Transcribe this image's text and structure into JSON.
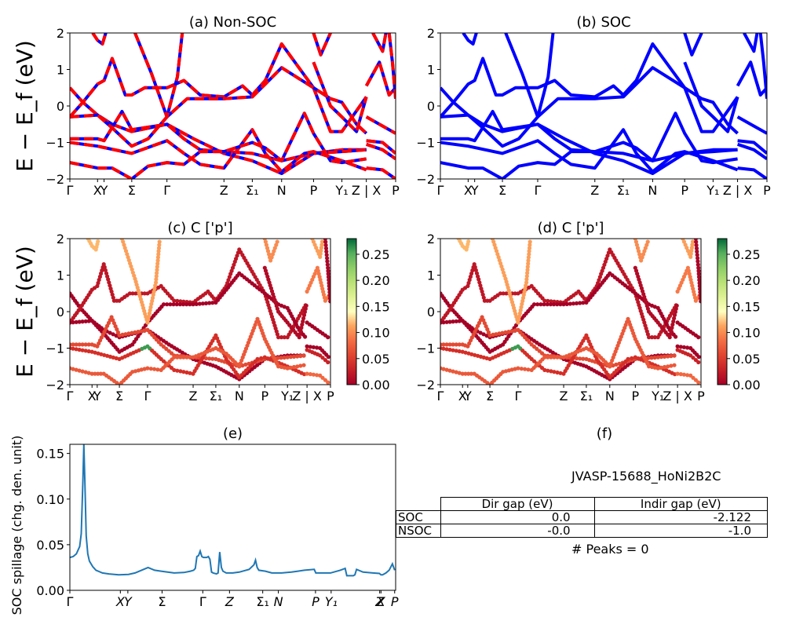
{
  "figure": {
    "ylabel_band": "E − E_f (eV)",
    "colors": {
      "nonsoc_solid": "#ff0000",
      "nonsoc_dash": "#0000ff",
      "soc": "#0000ff",
      "spillage_line": "#1f77b4"
    }
  },
  "chart_data": [
    {
      "id": "a",
      "type": "line",
      "title": "(a) Non-SOC",
      "ylabel": "E − E_f (eV)",
      "ylim": [
        -2,
        2
      ],
      "yticks": [
        "2",
        "1",
        "0",
        "−1",
        "−2"
      ],
      "xticks": [
        "Γ",
        "X",
        "Y",
        "Σ",
        "Γ",
        "Z",
        "Σ₁",
        "N",
        "P",
        "Y₁",
        "Z | X",
        "P"
      ],
      "xtick_pos": [
        0,
        0.085,
        0.105,
        0.19,
        0.298,
        0.473,
        0.56,
        0.65,
        0.748,
        0.835,
        0.91,
        1.0
      ],
      "style": "red solid with blue dashes overlay",
      "bands": [
        [
          [
            0,
            0.5
          ],
          [
            0.04,
            0.1
          ],
          [
            0.085,
            -0.25
          ],
          [
            0.13,
            -0.5
          ],
          [
            0.19,
            -0.7
          ],
          [
            0.298,
            -0.5
          ],
          [
            0.38,
            -0.9
          ],
          [
            0.473,
            -1.3
          ],
          [
            0.56,
            -1.5
          ],
          [
            0.65,
            -1.85
          ],
          [
            0.748,
            -1.3
          ],
          [
            0.835,
            -1.2
          ],
          [
            0.91,
            -1.2
          ]
        ],
        [
          [
            0,
            -0.3
          ],
          [
            0.04,
            0.1
          ],
          [
            0.085,
            0.6
          ],
          [
            0.105,
            0.7
          ],
          [
            0.13,
            1.3
          ],
          [
            0.17,
            0.3
          ],
          [
            0.19,
            0.3
          ],
          [
            0.23,
            0.5
          ],
          [
            0.298,
            0.5
          ],
          [
            0.35,
            0.7
          ],
          [
            0.4,
            0.3
          ],
          [
            0.473,
            0.25
          ],
          [
            0.53,
            0.55
          ],
          [
            0.56,
            0.3
          ],
          [
            0.6,
            0.7
          ],
          [
            0.65,
            1.7
          ],
          [
            0.748,
            0.5
          ],
          [
            0.8,
            -0.7
          ],
          [
            0.835,
            -0.7
          ],
          [
            0.91,
            0.25
          ]
        ],
        [
          [
            0,
            -0.3
          ],
          [
            0.085,
            -0.25
          ],
          [
            0.13,
            -0.6
          ],
          [
            0.19,
            -1.1
          ],
          [
            0.24,
            -0.9
          ],
          [
            0.298,
            -0.3
          ],
          [
            0.36,
            0.2
          ],
          [
            0.473,
            0.2
          ],
          [
            0.56,
            0.25
          ],
          [
            0.6,
            0.6
          ],
          [
            0.65,
            1.05
          ],
          [
            0.748,
            0.5
          ],
          [
            0.8,
            0.2
          ],
          [
            0.835,
            0.1
          ],
          [
            0.88,
            -0.5
          ],
          [
            0.91,
            -0.75
          ]
        ],
        [
          [
            0,
            -0.9
          ],
          [
            0.085,
            -0.9
          ],
          [
            0.105,
            -0.95
          ],
          [
            0.16,
            -0.15
          ],
          [
            0.19,
            -0.65
          ],
          [
            0.298,
            -0.5
          ],
          [
            0.35,
            -0.9
          ],
          [
            0.4,
            -1.2
          ],
          [
            0.473,
            -1.25
          ],
          [
            0.56,
            -1.3
          ],
          [
            0.65,
            -1.5
          ],
          [
            0.748,
            -1.3
          ],
          [
            0.835,
            -1.25
          ],
          [
            0.91,
            -1.2
          ]
        ],
        [
          [
            0,
            -1.0
          ],
          [
            0.085,
            -1.1
          ],
          [
            0.19,
            -1.3
          ],
          [
            0.298,
            -0.95
          ],
          [
            0.35,
            -1.3
          ],
          [
            0.4,
            -1.6
          ],
          [
            0.473,
            -1.7
          ],
          [
            0.56,
            -0.65
          ],
          [
            0.6,
            -1.3
          ],
          [
            0.65,
            -1.8
          ],
          [
            0.72,
            -1.3
          ],
          [
            0.748,
            -1.25
          ],
          [
            0.835,
            -1.5
          ],
          [
            0.91,
            -1.75
          ]
        ],
        [
          [
            0,
            -1.55
          ],
          [
            0.085,
            -1.7
          ],
          [
            0.13,
            -1.7
          ],
          [
            0.19,
            -2.0
          ],
          [
            0.24,
            -1.65
          ],
          [
            0.298,
            -1.55
          ],
          [
            0.35,
            -1.6
          ],
          [
            0.4,
            -1.25
          ],
          [
            0.473,
            -1.25
          ],
          [
            0.56,
            -1.0
          ],
          [
            0.6,
            -1.15
          ],
          [
            0.65,
            -1.5
          ],
          [
            0.72,
            -0.2
          ],
          [
            0.748,
            -0.75
          ],
          [
            0.8,
            -1.5
          ],
          [
            0.835,
            -1.55
          ],
          [
            0.91,
            -1.45
          ]
        ],
        [
          [
            0.07,
            2.0
          ],
          [
            0.085,
            1.8
          ],
          [
            0.1,
            1.7
          ],
          [
            0.11,
            2.0
          ]
        ],
        [
          [
            0.2,
            2.0
          ],
          [
            0.25,
            0.9
          ],
          [
            0.298,
            -0.3
          ],
          [
            0.33,
            0.8
          ],
          [
            0.345,
            2.0
          ]
        ],
        [
          [
            0.748,
            2.0
          ],
          [
            0.77,
            1.4
          ],
          [
            0.8,
            2.0
          ]
        ],
        [
          [
            0.748,
            1.2
          ],
          [
            0.8,
            0.0
          ],
          [
            0.835,
            -0.3
          ],
          [
            0.88,
            -0.7
          ],
          [
            0.91,
            0.25
          ]
        ],
        [
          [
            0.91,
            -0.3
          ],
          [
            0.95,
            -0.5
          ],
          [
            1.0,
            -0.75
          ]
        ],
        [
          [
            0.91,
            0.55
          ],
          [
            0.95,
            1.2
          ],
          [
            0.98,
            0.3
          ],
          [
            1.0,
            0.5
          ]
        ],
        [
          [
            0.91,
            -0.95
          ],
          [
            0.96,
            -1.0
          ],
          [
            1.0,
            -1.3
          ]
        ],
        [
          [
            0.91,
            -1.05
          ],
          [
            0.96,
            -1.2
          ],
          [
            1.0,
            -1.45
          ]
        ],
        [
          [
            0.91,
            -1.7
          ],
          [
            0.96,
            -1.75
          ],
          [
            1.0,
            -2.0
          ]
        ],
        [
          [
            0.93,
            2.0
          ],
          [
            0.96,
            1.5
          ],
          [
            0.97,
            2.0
          ]
        ],
        [
          [
            0.98,
            2.0
          ],
          [
            0.99,
            1.2
          ],
          [
            1.0,
            0.2
          ]
        ]
      ]
    },
    {
      "id": "b",
      "type": "line",
      "title": "(b) SOC",
      "ylim": [
        -2,
        2
      ],
      "yticks": [
        "2",
        "1",
        "0",
        "−1",
        "−2"
      ],
      "xticks": [
        "Γ",
        "X",
        "Y",
        "Σ",
        "Γ",
        "Z",
        "Σ₁",
        "N",
        "P",
        "Y₁",
        "Z | X",
        "P"
      ],
      "xtick_pos": [
        0,
        0.085,
        0.105,
        0.19,
        0.298,
        0.473,
        0.56,
        0.65,
        0.748,
        0.835,
        0.91,
        1.0
      ],
      "style": "blue solid"
    },
    {
      "id": "c",
      "type": "scatter",
      "title": "(c)  C ['p']",
      "ylabel": "E − E_f (eV)",
      "ylim": [
        -2,
        2
      ],
      "yticks": [
        "2",
        "1",
        "0",
        "−1",
        "−2"
      ],
      "xticks": [
        "Γ",
        "X",
        "Y",
        "Σ",
        "Γ",
        "Z",
        "Σ₁",
        "N",
        "P",
        "Y₁",
        "Z | X",
        "P"
      ],
      "xtick_pos": [
        0,
        0.085,
        0.105,
        0.19,
        0.298,
        0.473,
        0.56,
        0.65,
        0.748,
        0.835,
        0.91,
        1.0
      ],
      "colormap": "RdYlGn",
      "colorbar": {
        "range": [
          0,
          0.28
        ],
        "ticks": [
          "0.00",
          "0.05",
          "0.10",
          "0.15",
          "0.20",
          "0.25"
        ]
      }
    },
    {
      "id": "d",
      "type": "scatter",
      "title": "(d) C ['p']",
      "ylim": [
        -2,
        2
      ],
      "yticks": [
        "2",
        "1",
        "0",
        "−1",
        "−2"
      ],
      "xticks": [
        "Γ",
        "X",
        "Y",
        "Σ",
        "Γ",
        "Z",
        "Σ₁",
        "N",
        "P",
        "Y₁",
        "Z | X",
        "P"
      ],
      "xtick_pos": [
        0,
        0.085,
        0.105,
        0.19,
        0.298,
        0.473,
        0.56,
        0.65,
        0.748,
        0.835,
        0.91,
        1.0
      ],
      "colormap": "RdYlGn",
      "colorbar": {
        "range": [
          0,
          0.28
        ],
        "ticks": [
          "0.00",
          "0.05",
          "0.10",
          "0.15",
          "0.20",
          "0.25"
        ]
      }
    },
    {
      "id": "e",
      "type": "line",
      "title": "(e)",
      "ylabel": "SOC spillage (chg. den. unit)",
      "ylim": [
        0,
        0.16
      ],
      "yticks": [
        "0.15",
        "0.10",
        "0.05",
        "0.00"
      ],
      "ytick_vals": [
        0.15,
        0.1,
        0.05,
        0.0
      ],
      "xticks": [
        "Γ",
        "X",
        "Y",
        "Σ",
        "Γ",
        "Z",
        "Σ₁",
        "N",
        "P",
        "Y₁",
        "Z",
        "X",
        "P"
      ],
      "xtick_pos": [
        0,
        0.155,
        0.178,
        0.283,
        0.408,
        0.49,
        0.592,
        0.64,
        0.754,
        0.802,
        0.951,
        0.955,
        0.997
      ],
      "series": [
        {
          "name": "spillage",
          "x": [
            0,
            0.01,
            0.02,
            0.03,
            0.035,
            0.04,
            0.043,
            0.046,
            0.05,
            0.055,
            0.06,
            0.07,
            0.08,
            0.1,
            0.12,
            0.15,
            0.18,
            0.2,
            0.22,
            0.24,
            0.26,
            0.28,
            0.3,
            0.32,
            0.35,
            0.37,
            0.38,
            0.385,
            0.39,
            0.395,
            0.4,
            0.405,
            0.41,
            0.42,
            0.425,
            0.43,
            0.435,
            0.44,
            0.45,
            0.455,
            0.46,
            0.465,
            0.47,
            0.48,
            0.5,
            0.52,
            0.55,
            0.565,
            0.57,
            0.575,
            0.58,
            0.6,
            0.62,
            0.65,
            0.68,
            0.7,
            0.72,
            0.75,
            0.755,
            0.76,
            0.8,
            0.83,
            0.845,
            0.85,
            0.86,
            0.87,
            0.875,
            0.88,
            0.9,
            0.93,
            0.95,
            0.955,
            0.96,
            0.97,
            0.98,
            0.99,
            0.997
          ],
          "y": [
            0.036,
            0.037,
            0.04,
            0.048,
            0.062,
            0.12,
            0.16,
            0.12,
            0.06,
            0.04,
            0.032,
            0.026,
            0.022,
            0.019,
            0.018,
            0.017,
            0.0175,
            0.019,
            0.022,
            0.025,
            0.022,
            0.021,
            0.02,
            0.019,
            0.0195,
            0.021,
            0.022,
            0.024,
            0.037,
            0.038,
            0.043,
            0.037,
            0.036,
            0.036,
            0.037,
            0.034,
            0.02,
            0.019,
            0.018,
            0.019,
            0.042,
            0.025,
            0.021,
            0.019,
            0.019,
            0.02,
            0.023,
            0.028,
            0.033,
            0.025,
            0.022,
            0.021,
            0.019,
            0.019,
            0.02,
            0.021,
            0.022,
            0.023,
            0.019,
            0.019,
            0.019,
            0.022,
            0.024,
            0.016,
            0.016,
            0.016,
            0.017,
            0.023,
            0.02,
            0.019,
            0.0185,
            0.017,
            0.017,
            0.019,
            0.022,
            0.029,
            0.022
          ]
        }
      ]
    }
  ],
  "panel_f": {
    "title": "(f)",
    "material": "JVASP-15688_HoNi2B2C",
    "table": {
      "columns": [
        "Dir gap (eV)",
        "Indir gap (eV)"
      ],
      "rows": [
        {
          "label": "SOC",
          "dir": "0.0",
          "indir": "-2.122"
        },
        {
          "label": "NSOC",
          "dir": "-0.0",
          "indir": "-1.0"
        }
      ]
    },
    "peaks_text": "# Peaks = 0"
  }
}
